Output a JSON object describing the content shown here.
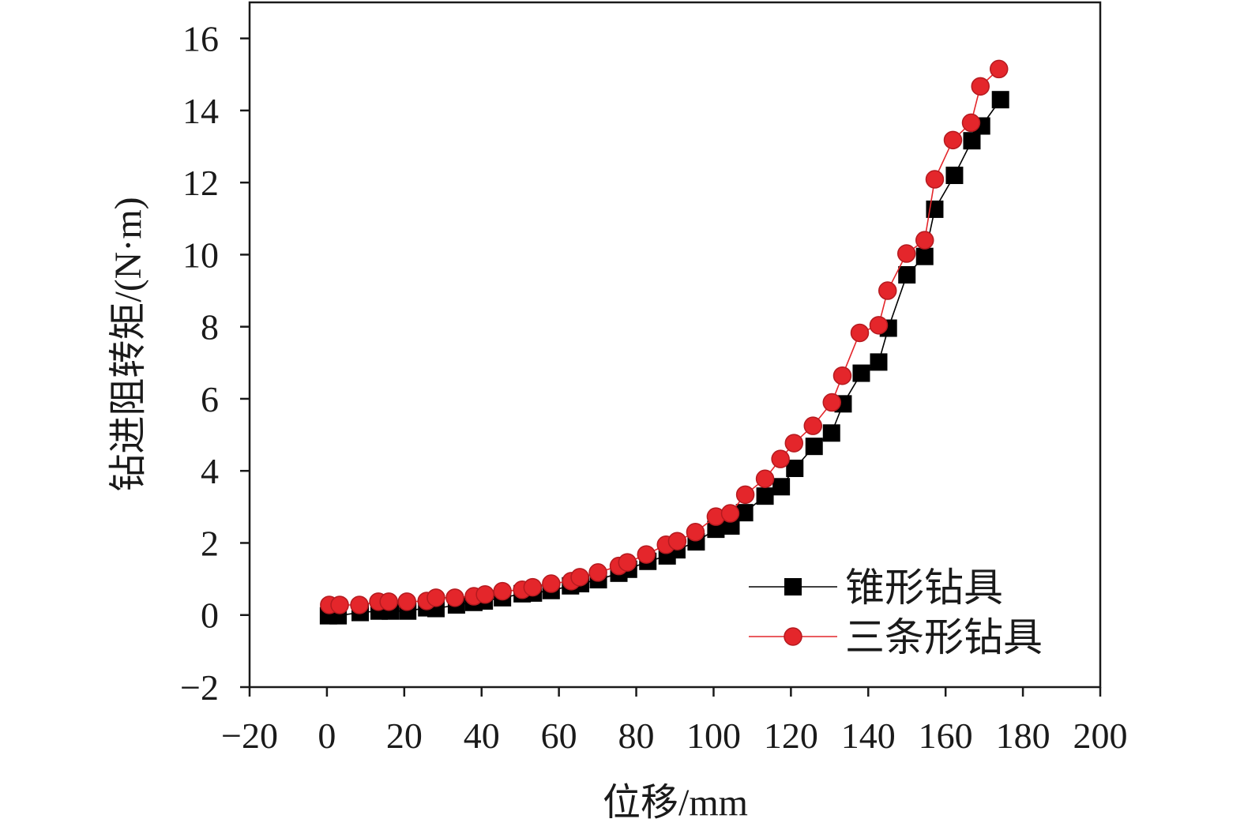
{
  "chart_data": {
    "type": "line",
    "title": "",
    "xlabel": "位移/mm",
    "ylabel": "钻进阻转矩/(N·m)",
    "xlim": [
      -20,
      200
    ],
    "ylim": [
      -2,
      17
    ],
    "xticks": [
      -20,
      0,
      20,
      40,
      60,
      80,
      100,
      120,
      140,
      160,
      180,
      200
    ],
    "xtick_labels": [
      "−20",
      "0",
      "20",
      "40",
      "60",
      "80",
      "100",
      "120",
      "140",
      "160",
      "180",
      "200"
    ],
    "yticks": [
      -2,
      0,
      2,
      4,
      6,
      8,
      10,
      12,
      14,
      16
    ],
    "ytick_labels": [
      "−2",
      "0",
      "2",
      "4",
      "6",
      "8",
      "10",
      "12",
      "14",
      "16"
    ],
    "grid": false,
    "legend_position": "bottom-right",
    "series": [
      {
        "name": "锥形钻具",
        "color": "#000000",
        "marker": "square",
        "x": [
          0.4,
          2.9,
          8.6,
          13.5,
          16.4,
          20.9,
          25.8,
          28.2,
          33.5,
          38.0,
          40.7,
          45.4,
          50.5,
          53.4,
          58.0,
          63.0,
          65.6,
          70.2,
          75.5,
          78.0,
          83.0,
          88.0,
          90.5,
          95.5,
          100.6,
          104.5,
          108.0,
          113.3,
          117.5,
          121.0,
          126.0,
          130.5,
          133.5,
          138.2,
          142.7,
          145.2,
          150.0,
          154.6,
          157.2,
          162.3,
          166.8,
          169.3,
          174.2
        ],
        "y": [
          -0.02,
          -0.02,
          0.07,
          0.11,
          0.11,
          0.11,
          0.2,
          0.18,
          0.28,
          0.35,
          0.39,
          0.48,
          0.59,
          0.61,
          0.68,
          0.81,
          0.87,
          0.98,
          1.16,
          1.27,
          1.49,
          1.64,
          1.81,
          2.03,
          2.38,
          2.47,
          2.84,
          3.3,
          3.56,
          4.07,
          4.68,
          5.05,
          5.86,
          6.71,
          7.02,
          7.96,
          9.44,
          9.95,
          11.26,
          12.2,
          13.16,
          13.57,
          14.3
        ]
      },
      {
        "name": "三条形钻具",
        "color": "#e4262b",
        "marker": "circle",
        "x": [
          0.6,
          3.3,
          8.4,
          13.3,
          16.0,
          20.7,
          25.8,
          28.2,
          33.1,
          38.0,
          40.9,
          45.4,
          50.5,
          53.2,
          58.0,
          63.2,
          65.4,
          70.1,
          75.5,
          77.7,
          82.6,
          87.7,
          90.6,
          95.3,
          100.6,
          104.3,
          108.2,
          113.3,
          117.3,
          120.8,
          125.7,
          130.6,
          133.3,
          137.8,
          142.7,
          145.0,
          149.9,
          154.6,
          157.2,
          161.9,
          166.6,
          169.0,
          173.8
        ],
        "y": [
          0.28,
          0.28,
          0.28,
          0.37,
          0.37,
          0.37,
          0.39,
          0.48,
          0.48,
          0.52,
          0.57,
          0.66,
          0.7,
          0.77,
          0.87,
          0.94,
          1.05,
          1.18,
          1.36,
          1.46,
          1.68,
          1.95,
          2.05,
          2.3,
          2.73,
          2.82,
          3.34,
          3.78,
          4.33,
          4.77,
          5.25,
          5.9,
          6.64,
          7.83,
          8.04,
          9.0,
          10.03,
          10.4,
          12.09,
          13.18,
          13.66,
          14.67,
          15.15
        ]
      }
    ]
  }
}
